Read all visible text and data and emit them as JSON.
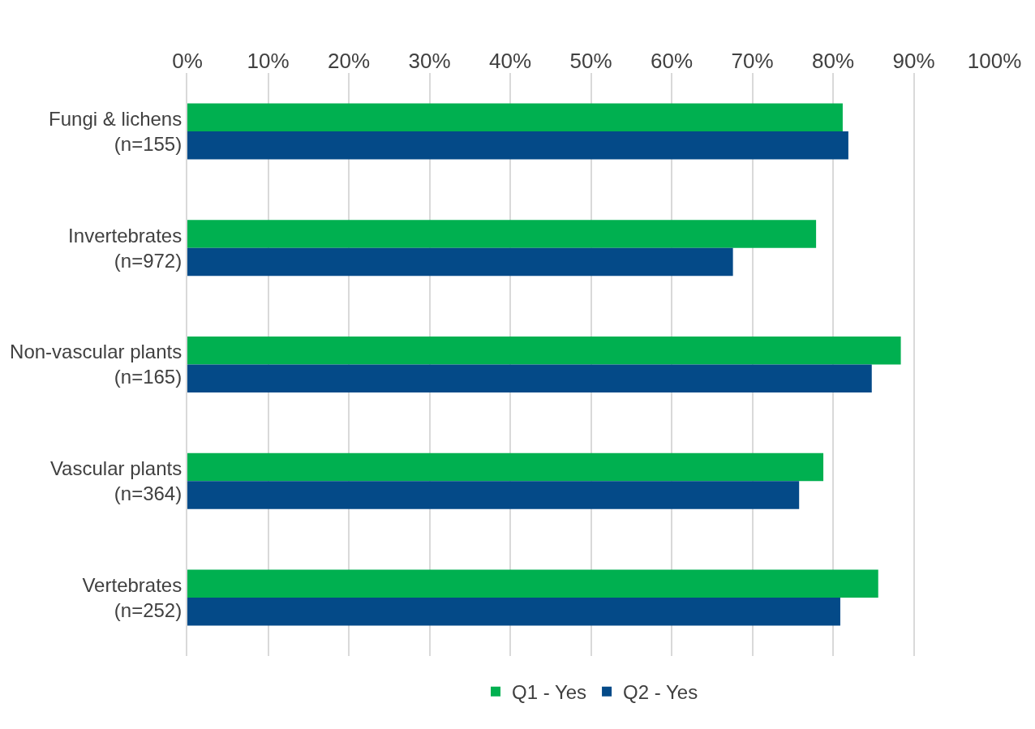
{
  "chart_data": {
    "type": "bar",
    "orientation": "horizontal",
    "categories": [
      "Fungi & lichens\n(n=155)",
      "Invertebrates\n(n=972)",
      "Non-vascular plants\n(n=165)",
      "Vascular plants\n(n=364)",
      "Vertebrates\n(n=252)"
    ],
    "series": [
      {
        "name": "Q1 - Yes",
        "color": "#00b050",
        "values": [
          81.2,
          77.9,
          88.4,
          78.8,
          85.6
        ]
      },
      {
        "name": "Q2 - Yes",
        "color": "#044a88",
        "values": [
          81.9,
          67.6,
          84.8,
          75.8,
          80.9
        ]
      }
    ],
    "xlim": [
      0,
      100
    ],
    "xticks": [
      {
        "value": 0,
        "label": "0%"
      },
      {
        "value": 10,
        "label": "10%"
      },
      {
        "value": 20,
        "label": "20%"
      },
      {
        "value": 30,
        "label": "30%"
      },
      {
        "value": 40,
        "label": "40%"
      },
      {
        "value": 50,
        "label": "50%"
      },
      {
        "value": 60,
        "label": "60%"
      },
      {
        "value": 70,
        "label": "70%"
      },
      {
        "value": 80,
        "label": "80%"
      },
      {
        "value": 90,
        "label": "90%"
      },
      {
        "value": 100,
        "label": "100%"
      }
    ],
    "grid": "x",
    "legend": "bottom"
  }
}
